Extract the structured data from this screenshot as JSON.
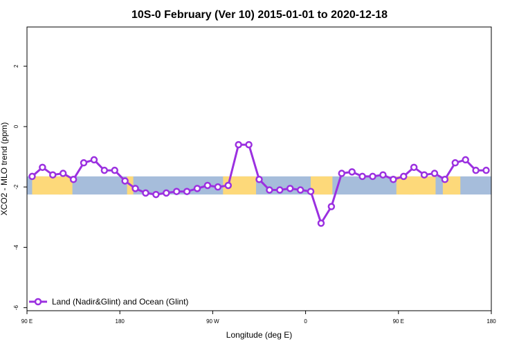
{
  "chart_data": {
    "type": "line",
    "title": "10S-0 February (Ver 10)   2015-01-01 to 2020-12-18",
    "xlabel": "Longitude (deg E)",
    "ylabel": "XCO2 - MLO trend (ppm)",
    "xlim": [
      90,
      540
    ],
    "ylim": [
      -6.1,
      3.3
    ],
    "x_ticks": [
      {
        "value": 90,
        "label": "90 E"
      },
      {
        "value": 180,
        "label": "180"
      },
      {
        "value": 270,
        "label": "90 W"
      },
      {
        "value": 360,
        "label": "0"
      },
      {
        "value": 450,
        "label": "90 E"
      },
      {
        "value": 540,
        "label": "180"
      }
    ],
    "y_ticks": [
      {
        "value": 2,
        "label": "2"
      },
      {
        "value": 0,
        "label": "0"
      },
      {
        "value": -2,
        "label": "-2"
      },
      {
        "value": -4,
        "label": "-4"
      },
      {
        "value": -6,
        "label": "-6"
      }
    ],
    "map_band": {
      "y_range": [
        -2.25,
        -1.65
      ],
      "ocean_color": "#a6bddb",
      "land_color": "#fdd97a",
      "land_segments": [
        [
          95,
          105
        ],
        [
          100,
          125
        ],
        [
          121,
          134
        ],
        [
          187,
          193
        ],
        [
          280,
          312
        ],
        [
          365,
          386
        ],
        [
          448,
          465
        ],
        [
          460,
          486
        ],
        [
          493,
          510
        ]
      ]
    },
    "series": [
      {
        "name": "Land (Nadir&Glint) and Ocean (Glint)",
        "color": "#9b30e0",
        "x": [
          95,
          105,
          115,
          125,
          135,
          145,
          155,
          165,
          175,
          185,
          195,
          205,
          215,
          225,
          235,
          245,
          255,
          265,
          275,
          285,
          295,
          305,
          315,
          325,
          335,
          345,
          355,
          365,
          375,
          385,
          395,
          405,
          415,
          425,
          435,
          445,
          455,
          465,
          475,
          485,
          495,
          505,
          515,
          525,
          535
        ],
        "y": [
          -1.65,
          -1.35,
          -1.6,
          -1.55,
          -1.75,
          -1.2,
          -1.1,
          -1.45,
          -1.45,
          -1.8,
          -2.05,
          -2.2,
          -2.25,
          -2.2,
          -2.15,
          -2.15,
          -2.05,
          -1.95,
          -2.0,
          -1.95,
          -0.6,
          -0.6,
          -1.75,
          -2.1,
          -2.1,
          -2.05,
          -2.1,
          -2.15,
          -3.2,
          -2.65,
          -1.55,
          -1.5,
          -1.65,
          -1.65,
          -1.6,
          -1.75,
          -1.65,
          -1.35,
          -1.6,
          -1.55,
          -1.75,
          -1.2,
          -1.1,
          -1.45,
          -1.45
        ]
      }
    ],
    "legend": {
      "position": "bottom-left",
      "label": "Land (Nadir&Glint) and Ocean (Glint)"
    }
  }
}
